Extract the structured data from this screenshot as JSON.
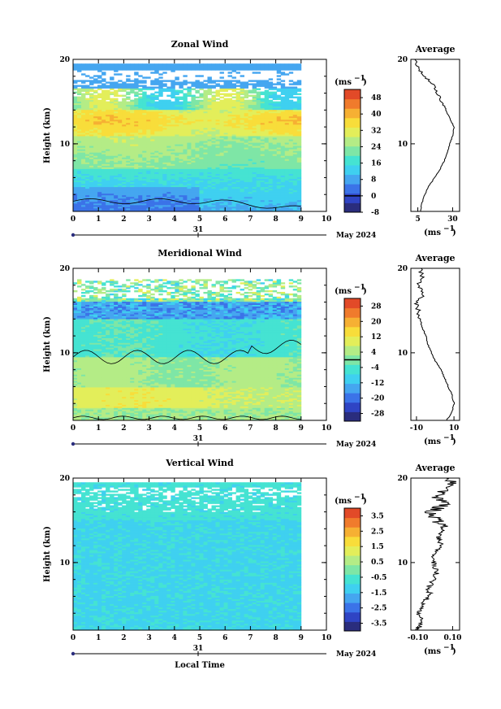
{
  "figure": {
    "colors": [
      "#2a2d7d",
      "#2f44c4",
      "#3b73e8",
      "#45a6f0",
      "#3fd0f0",
      "#45e3d2",
      "#7ee6a6",
      "#b4ec86",
      "#e3ee5a",
      "#f8dd3a",
      "#f6b033",
      "#f07b2c",
      "#e24a28"
    ],
    "contour_color": "#000000",
    "x_ticks": [
      "0",
      "1",
      "2",
      "3",
      "4",
      "5",
      "6",
      "7",
      "8",
      "9",
      "10"
    ],
    "y_ticks": [
      "20",
      "10"
    ],
    "date_marker": "31",
    "date_label": "May 2024",
    "x_axis_label": "Local Time"
  },
  "chart_data": [
    {
      "type": "heatmap",
      "title": "Zonal Wind",
      "ylabel": "Height (km)",
      "units": "(ms",
      "units_exp": "−1",
      "xlim": [
        0,
        10
      ],
      "ylim": [
        2,
        20
      ],
      "colorbar": {
        "ticks": [
          "48",
          "40",
          "32",
          "24",
          "16",
          "8",
          "0",
          "-8"
        ],
        "range": [
          -8,
          52
        ],
        "contour_level": 0
      },
      "profile": {
        "title": "Average",
        "xlim": [
          0,
          35
        ],
        "x_ticks": [
          "5",
          "30"
        ],
        "xlabel_units": "(ms",
        "xlabel_exp": "−1",
        "height": [
          2,
          3,
          4,
          5,
          6,
          7,
          8,
          9,
          10,
          11,
          12,
          13,
          14,
          15,
          16,
          17,
          18,
          19,
          20
        ],
        "values": [
          7,
          8,
          10,
          13,
          17,
          21,
          24,
          26,
          28,
          30,
          31,
          28,
          25,
          22,
          19,
          16,
          10,
          5,
          3
        ]
      }
    },
    {
      "type": "heatmap",
      "title": "Meridional Wind",
      "ylabel": "Height (km)",
      "units": "(ms",
      "units_exp": "−1",
      "xlim": [
        0,
        10
      ],
      "ylim": [
        2,
        20
      ],
      "colorbar": {
        "ticks": [
          "28",
          "20",
          "12",
          "4",
          "-4",
          "-12",
          "-20",
          "-28"
        ],
        "range": [
          -32,
          32
        ],
        "contour_level": 0
      },
      "profile": {
        "title": "Average",
        "xlim": [
          -13,
          13
        ],
        "x_ticks": [
          "-10",
          "10"
        ],
        "xlabel_units": "(ms",
        "xlabel_exp": "−1",
        "height": [
          2,
          3,
          4,
          5,
          6,
          7,
          8,
          9,
          10,
          11,
          12,
          13,
          14,
          15,
          16,
          17,
          18,
          19,
          20
        ],
        "values": [
          6,
          9,
          10,
          9,
          7,
          5,
          3,
          0,
          -2,
          -4,
          -5,
          -7,
          -8,
          -9,
          -10,
          -6,
          -9,
          -7,
          -8
        ]
      }
    },
    {
      "type": "heatmap",
      "title": "Vertical Wind",
      "ylabel": "Height (km)",
      "units": "(ms",
      "units_exp": "−1",
      "xlim": [
        0,
        10
      ],
      "ylim": [
        2,
        20
      ],
      "colorbar": {
        "ticks": [
          "3.5",
          "2.5",
          "1.5",
          "0.5",
          "-0.5",
          "-1.5",
          "-2.5",
          "-3.5"
        ],
        "range": [
          -4,
          4
        ],
        "contour_level": null
      },
      "profile": {
        "title": "Average",
        "xlim": [
          -0.14,
          0.14
        ],
        "x_ticks": [
          "-0.10",
          "0.10"
        ],
        "xlabel_units": "(ms",
        "xlabel_exp": "−1",
        "height": [
          2,
          3,
          4,
          5,
          6,
          7,
          8,
          9,
          10,
          11,
          12,
          13,
          14,
          15,
          16,
          17,
          18,
          19,
          20
        ],
        "values": [
          -0.11,
          -0.07,
          -0.1,
          -0.08,
          -0.03,
          -0.04,
          -0.01,
          0.01,
          -0.01,
          0.0,
          0.03,
          0.02,
          0.05,
          0.02,
          -0.02,
          0.06,
          0.0,
          0.09,
          0.1
        ]
      }
    }
  ]
}
